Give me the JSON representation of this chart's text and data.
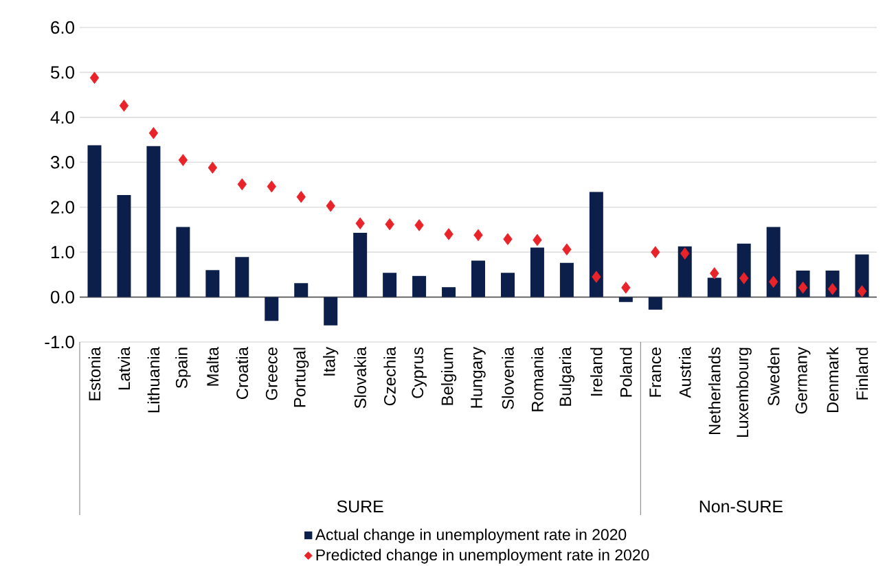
{
  "chart_data": {
    "type": "bar",
    "categories": [
      "Estonia",
      "Latvia",
      "Lithuania",
      "Spain",
      "Malta",
      "Croatia",
      "Greece",
      "Portugal",
      "Italy",
      "Slovakia",
      "Czechia",
      "Cyprus",
      "Belgium",
      "Hungary",
      "Slovenia",
      "Romania",
      "Bulgaria",
      "Ireland",
      "Poland",
      "France",
      "Austria",
      "Netherlands",
      "Luxembourg",
      "Sweden",
      "Germany",
      "Denmark",
      "Finland"
    ],
    "series": [
      {
        "name": "Actual change in unemployment rate in 2020",
        "color": "#0b1f4a",
        "values": [
          3.38,
          2.27,
          3.36,
          1.56,
          0.6,
          0.89,
          -0.53,
          0.31,
          -0.63,
          1.43,
          0.54,
          0.47,
          0.22,
          0.81,
          0.54,
          1.1,
          0.76,
          2.34,
          -0.11,
          -0.28,
          1.13,
          0.43,
          1.19,
          1.56,
          0.59,
          0.59,
          0.95
        ]
      },
      {
        "name": "Predicted change in unemployment rate in 2020",
        "type": "scatter",
        "color": "#e8242a",
        "marker": "diamond",
        "values": [
          4.88,
          4.26,
          3.65,
          3.05,
          2.88,
          2.51,
          2.46,
          2.23,
          2.03,
          1.64,
          1.62,
          1.6,
          1.4,
          1.38,
          1.29,
          1.27,
          1.06,
          0.45,
          0.21,
          1.0,
          0.97,
          0.53,
          0.42,
          0.34,
          0.21,
          0.18,
          0.13
        ]
      }
    ],
    "ylim": [
      -1,
      6
    ],
    "yticks": [
      {
        "value": -1,
        "label": "-1.0"
      },
      {
        "value": 0,
        "label": "0.0"
      },
      {
        "value": 1,
        "label": "1.0"
      },
      {
        "value": 2,
        "label": "2.0"
      },
      {
        "value": 3,
        "label": "3.0"
      },
      {
        "value": 4,
        "label": "4.0"
      },
      {
        "value": 5,
        "label": "5.0"
      },
      {
        "value": 6,
        "label": "6.0"
      }
    ],
    "grid": "y",
    "legend": "bottom",
    "annotations": [
      "SURE",
      "Non-SURE"
    ]
  }
}
